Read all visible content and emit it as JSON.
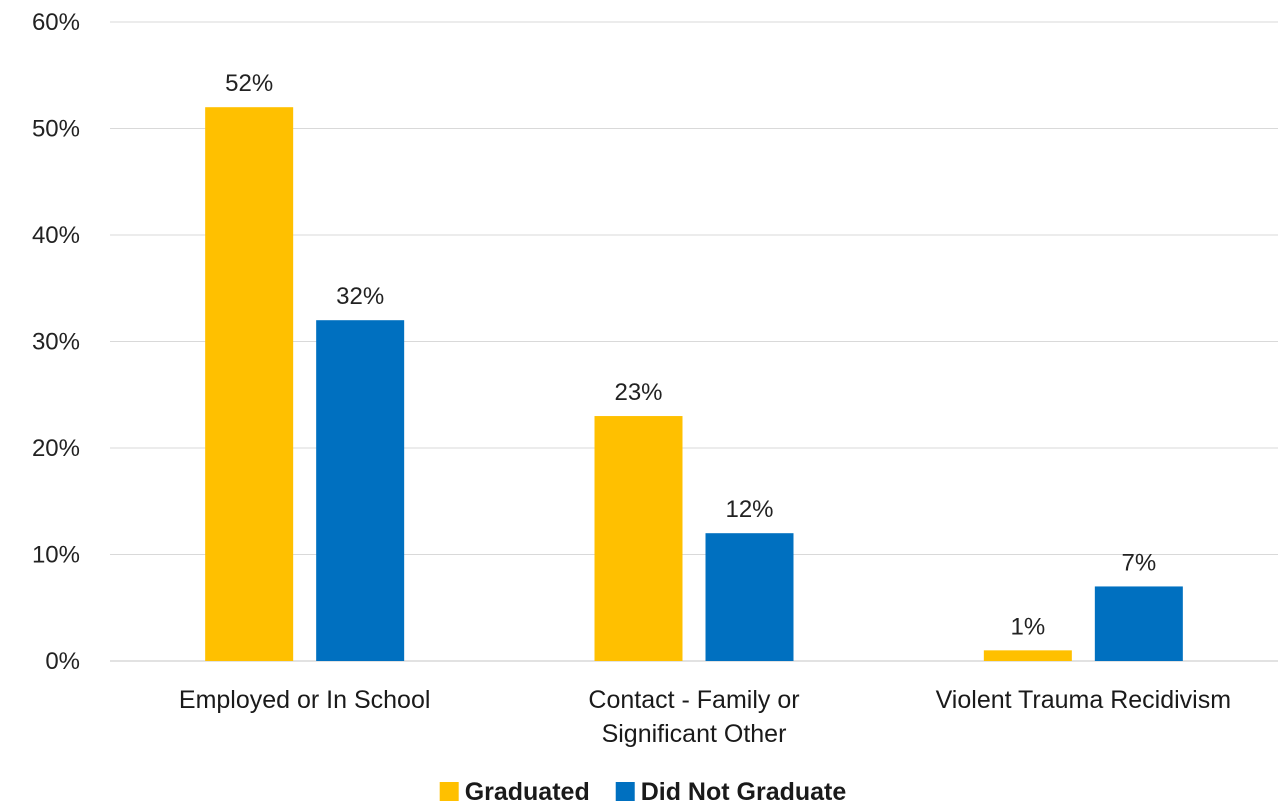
{
  "chart_data": {
    "type": "bar",
    "title": "",
    "xlabel": "",
    "ylabel": "",
    "categories": [
      [
        "Employed or In School"
      ],
      [
        "Contact - Family or",
        "Significant Other"
      ],
      [
        "Violent Trauma Recidivism"
      ]
    ],
    "series": [
      {
        "name": "Graduated",
        "color": "#FFC000",
        "values": [
          52,
          23,
          1
        ],
        "labels": [
          "52%",
          "23%",
          "1%"
        ]
      },
      {
        "name": "Did Not Graduate",
        "color": "#0070C0",
        "values": [
          32,
          12,
          7
        ],
        "labels": [
          "32%",
          "12%",
          "7%"
        ]
      }
    ],
    "ylim": [
      0,
      60
    ],
    "yticks": [
      0,
      10,
      20,
      30,
      40,
      50,
      60
    ],
    "ytick_labels": [
      "0%",
      "10%",
      "20%",
      "30%",
      "40%",
      "50%",
      "60%"
    ],
    "grid": true,
    "legend_position": "bottom-center"
  }
}
